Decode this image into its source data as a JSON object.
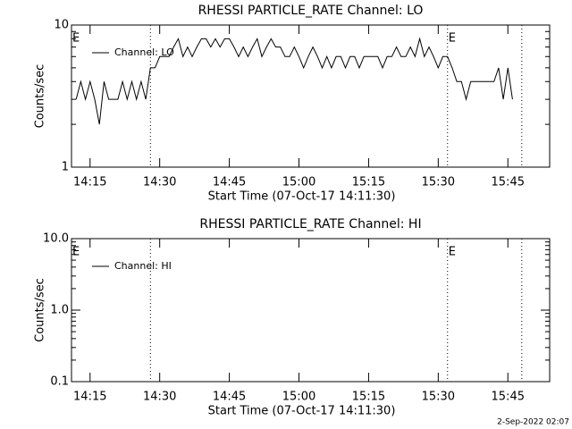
{
  "chart_data": [
    {
      "type": "line",
      "title": "RHESSI PARTICLE_RATE Channel: LO",
      "ylabel": "Counts/sec",
      "xlabel": "Start Time (07-Oct-17 14:11:30)",
      "log_y": true,
      "ylim": [
        1,
        10
      ],
      "yticks": [
        1,
        10
      ],
      "xlim": [
        "14:11",
        "15:54"
      ],
      "xticks": [
        "14:15",
        "14:30",
        "14:45",
        "15:00",
        "15:15",
        "15:30",
        "15:45"
      ],
      "legend": "upper left",
      "event_lines": [
        "14:28",
        "15:32",
        "15:48"
      ],
      "flags": [
        {
          "x": "14:11",
          "label": "E"
        },
        {
          "x": "15:32",
          "label": "E"
        }
      ],
      "x": [
        "14:12",
        "14:13",
        "14:14",
        "14:15",
        "14:16",
        "14:17",
        "14:18",
        "14:19",
        "14:20",
        "14:21",
        "14:22",
        "14:23",
        "14:24",
        "14:25",
        "14:26",
        "14:27",
        "14:28",
        "14:29",
        "14:30",
        "14:31",
        "14:32",
        "14:33",
        "14:34",
        "14:35",
        "14:36",
        "14:37",
        "14:38",
        "14:39",
        "14:40",
        "14:41",
        "14:42",
        "14:43",
        "14:44",
        "14:45",
        "14:46",
        "14:47",
        "14:48",
        "14:49",
        "14:50",
        "14:51",
        "14:52",
        "14:53",
        "14:54",
        "14:55",
        "14:56",
        "14:57",
        "14:58",
        "14:59",
        "15:00",
        "15:01",
        "15:02",
        "15:03",
        "15:04",
        "15:05",
        "15:06",
        "15:07",
        "15:08",
        "15:09",
        "15:10",
        "15:11",
        "15:12",
        "15:13",
        "15:14",
        "15:15",
        "15:16",
        "15:17",
        "15:18",
        "15:19",
        "15:20",
        "15:21",
        "15:22",
        "15:23",
        "15:24",
        "15:25",
        "15:26",
        "15:27",
        "15:28",
        "15:29",
        "15:30",
        "15:31",
        "15:32",
        "15:33",
        "15:34",
        "15:35",
        "15:36",
        "15:37",
        "15:38",
        "15:39",
        "15:40",
        "15:41",
        "15:42",
        "15:43",
        "15:44",
        "15:45",
        "15:46"
      ],
      "series": [
        {
          "name": "Channel: LO",
          "color": "#000000",
          "values": [
            3,
            4,
            3,
            4,
            3,
            2,
            4,
            3,
            3,
            3,
            4,
            3,
            4,
            3,
            4,
            3,
            5,
            5,
            6,
            6,
            6,
            7,
            8,
            6,
            7,
            6,
            7,
            8,
            8,
            7,
            8,
            7,
            8,
            8,
            7,
            6,
            7,
            6,
            7,
            8,
            6,
            7,
            8,
            7,
            7,
            6,
            6,
            7,
            6,
            5,
            6,
            7,
            6,
            5,
            6,
            5,
            6,
            6,
            5,
            6,
            6,
            5,
            6,
            6,
            6,
            6,
            5,
            6,
            6,
            7,
            6,
            6,
            7,
            6,
            8,
            6,
            7,
            6,
            5,
            6,
            6,
            5,
            4,
            4,
            3,
            4,
            4,
            4,
            4,
            4,
            4,
            5,
            3,
            5,
            3
          ]
        }
      ]
    },
    {
      "type": "line",
      "title": "RHESSI PARTICLE_RATE Channel: HI",
      "ylabel": "Counts/sec",
      "xlabel": "Start Time (07-Oct-17 14:11:30)",
      "log_y": true,
      "ylim": [
        0.1,
        10
      ],
      "yticks": [
        0.1,
        {
          "value": 1,
          "label": "1.0"
        },
        {
          "value": 10,
          "label": "10.0"
        }
      ],
      "xlim": [
        "14:11",
        "15:54"
      ],
      "xticks": [
        "14:15",
        "14:30",
        "14:45",
        "15:00",
        "15:15",
        "15:30",
        "15:45"
      ],
      "legend": "upper left",
      "event_lines": [
        "14:28",
        "15:32",
        "15:48"
      ],
      "flags": [
        {
          "x": "14:11",
          "label": "E"
        },
        {
          "x": "15:32",
          "label": "E"
        }
      ],
      "x": [],
      "series": [
        {
          "name": "Channel: HI",
          "color": "#000000",
          "values": []
        }
      ]
    }
  ],
  "footer": "2-Sep-2022 02:07"
}
